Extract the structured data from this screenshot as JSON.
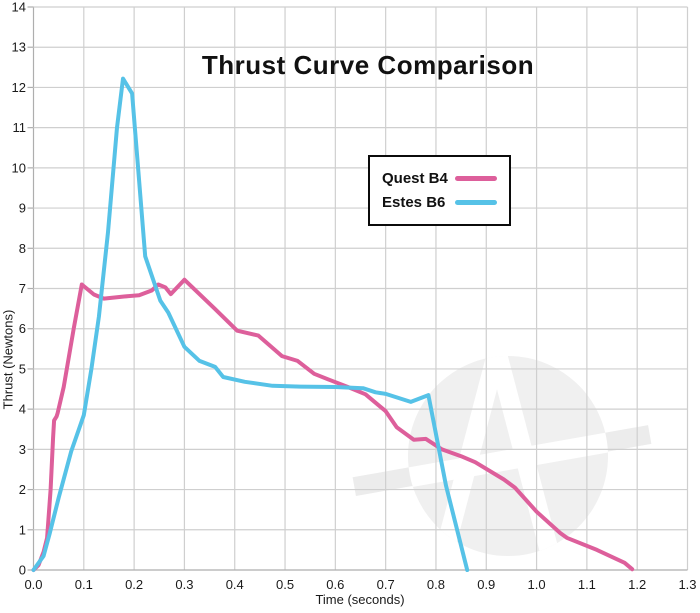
{
  "style": {
    "background": "#ffffff",
    "grid_color": "#cfcfcf",
    "axis_color": "#aeaeae",
    "tick_text_color": "#1a1a1a",
    "title_color": "#111111",
    "watermark_color": "#f0f0f0",
    "watermark_band_outer": "#ececec"
  },
  "watermark": {
    "name": "logo-watermark",
    "letter": "A"
  },
  "chart_data": {
    "type": "line",
    "title": "Thrust Curve Comparison",
    "xlabel": "Time (seconds)",
    "ylabel": "Thrust (Newtons)",
    "xlim": [
      0,
      1.3
    ],
    "ylim": [
      0,
      14
    ],
    "grid": true,
    "legend_position": "upper-middle-right",
    "x_ticks": [
      "0.0",
      "0.1",
      "0.2",
      "0.3",
      "0.4",
      "0.5",
      "0.6",
      "0.7",
      "0.8",
      "0.9",
      "1.0",
      "1.1",
      "1.2",
      "1.3"
    ],
    "y_ticks": [
      "0",
      "1",
      "2",
      "3",
      "4",
      "5",
      "6",
      "7",
      "8",
      "9",
      "10",
      "11",
      "12",
      "13",
      "14"
    ],
    "series": [
      {
        "name": "Quest B4",
        "color": "#dd5f9b",
        "points": [
          [
            0.0,
            0.0
          ],
          [
            0.01,
            0.12
          ],
          [
            0.02,
            0.45
          ],
          [
            0.027,
            0.8
          ],
          [
            0.034,
            2.0
          ],
          [
            0.039,
            3.3
          ],
          [
            0.041,
            3.72
          ],
          [
            0.046,
            3.82
          ],
          [
            0.048,
            3.9
          ],
          [
            0.06,
            4.55
          ],
          [
            0.08,
            6.0
          ],
          [
            0.096,
            7.1
          ],
          [
            0.12,
            6.85
          ],
          [
            0.14,
            6.75
          ],
          [
            0.18,
            6.8
          ],
          [
            0.21,
            6.83
          ],
          [
            0.235,
            6.95
          ],
          [
            0.248,
            7.1
          ],
          [
            0.262,
            7.03
          ],
          [
            0.273,
            6.86
          ],
          [
            0.3,
            7.22
          ],
          [
            0.36,
            6.5
          ],
          [
            0.405,
            5.95
          ],
          [
            0.447,
            5.83
          ],
          [
            0.494,
            5.32
          ],
          [
            0.525,
            5.2
          ],
          [
            0.558,
            4.88
          ],
          [
            0.59,
            4.72
          ],
          [
            0.625,
            4.55
          ],
          [
            0.66,
            4.37
          ],
          [
            0.7,
            3.95
          ],
          [
            0.722,
            3.55
          ],
          [
            0.756,
            3.24
          ],
          [
            0.78,
            3.26
          ],
          [
            0.812,
            3.0
          ],
          [
            0.85,
            2.83
          ],
          [
            0.878,
            2.68
          ],
          [
            0.935,
            2.25
          ],
          [
            0.957,
            2.05
          ],
          [
            1.0,
            1.45
          ],
          [
            1.047,
            0.92
          ],
          [
            1.06,
            0.8
          ],
          [
            1.12,
            0.5
          ],
          [
            1.175,
            0.18
          ],
          [
            1.19,
            0.02
          ]
        ]
      },
      {
        "name": "Estes B6",
        "color": "#56c2e7",
        "points": [
          [
            0.0,
            0.0
          ],
          [
            0.02,
            0.35
          ],
          [
            0.032,
            0.9
          ],
          [
            0.05,
            1.8
          ],
          [
            0.075,
            2.95
          ],
          [
            0.1,
            3.85
          ],
          [
            0.115,
            5.0
          ],
          [
            0.13,
            6.3
          ],
          [
            0.148,
            8.4
          ],
          [
            0.166,
            11.0
          ],
          [
            0.178,
            12.22
          ],
          [
            0.196,
            11.85
          ],
          [
            0.222,
            7.8
          ],
          [
            0.252,
            6.7
          ],
          [
            0.268,
            6.4
          ],
          [
            0.3,
            5.55
          ],
          [
            0.33,
            5.2
          ],
          [
            0.361,
            5.05
          ],
          [
            0.377,
            4.8
          ],
          [
            0.42,
            4.68
          ],
          [
            0.475,
            4.58
          ],
          [
            0.53,
            4.56
          ],
          [
            0.6,
            4.55
          ],
          [
            0.655,
            4.52
          ],
          [
            0.68,
            4.42
          ],
          [
            0.7,
            4.38
          ],
          [
            0.75,
            4.18
          ],
          [
            0.785,
            4.35
          ],
          [
            0.82,
            2.1
          ],
          [
            0.862,
            0.0
          ]
        ]
      }
    ]
  }
}
